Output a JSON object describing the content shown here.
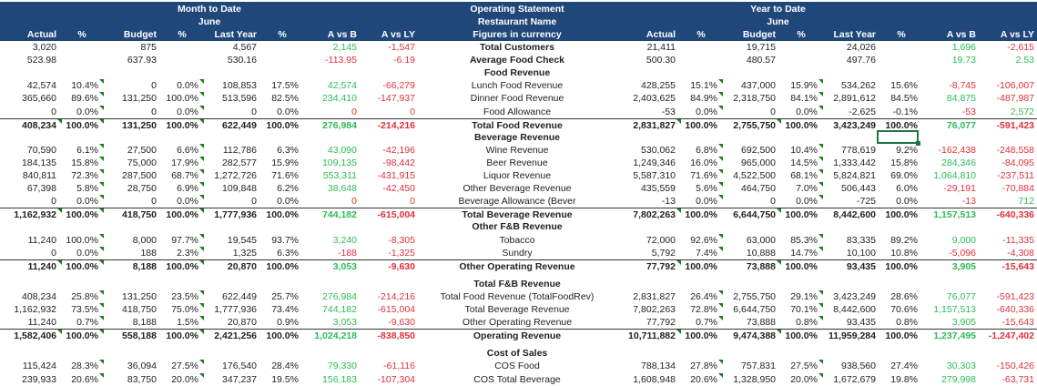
{
  "header": {
    "mtd_title": "Month to Date",
    "mtd_month": "June",
    "center_title": "Operating Statement",
    "center_subtitle": "Restaurant Name",
    "center_units": "Figures in  currency",
    "ytd_title": "Year to Date",
    "ytd_month": "June",
    "columns": [
      "Actual",
      "%",
      "Budget",
      "%",
      "Last Year",
      "%",
      "A vs B",
      "A vs LY"
    ]
  },
  "colors": {
    "header_bg": "#1f477a",
    "positive": "#2dbb55",
    "negative": "#e0303a",
    "selection": "#217346"
  },
  "rows": [
    {
      "type": "sec",
      "label": "Total Customers",
      "mtd": [
        "3,020",
        "",
        "875",
        "",
        "4,567",
        "",
        "2,145",
        "-1,547"
      ],
      "ytd": [
        "21,411",
        "",
        "19,715",
        "",
        "24,026",
        "",
        "1,696",
        "-2,615"
      ]
    },
    {
      "type": "sec",
      "label": "Average Food Check",
      "mtd": [
        "523.98",
        "",
        "637.93",
        "",
        "530.16",
        "",
        "-113.95",
        "-6.19"
      ],
      "ytd": [
        "500.30",
        "",
        "480.57",
        "",
        "497.76",
        "",
        "19.73",
        "2.53"
      ]
    },
    {
      "type": "sec",
      "label": "Food Revenue"
    },
    {
      "type": "line",
      "label": "Lunch Food Revenue",
      "mtd": [
        "42,574",
        "10.4%",
        "0",
        "0.0%",
        "108,853",
        "17.5%",
        "42,574",
        "-66,279"
      ],
      "ytd": [
        "428,255",
        "15.1%",
        "437,000",
        "15.9%",
        "534,262",
        "15.6%",
        "-8,745",
        "-106,007"
      ]
    },
    {
      "type": "line",
      "label": "Dinner Food Revenue",
      "mtd": [
        "365,660",
        "89.6%",
        "131,250",
        "100.0%",
        "513,596",
        "82.5%",
        "234,410",
        "-147,937"
      ],
      "ytd": [
        "2,403,625",
        "84.9%",
        "2,318,750",
        "84.1%",
        "2,891,612",
        "84.5%",
        "84,875",
        "-487,987"
      ]
    },
    {
      "type": "line",
      "label": "Food Allowance",
      "mtd": [
        "0",
        "0.0%",
        "0",
        "0.0%",
        "0",
        "0.0%",
        "0",
        "0"
      ],
      "ytd": [
        "-53",
        "0.0%",
        "0",
        "0.0%",
        "-2,625",
        "-0.1%",
        "-53",
        "2,572"
      ]
    },
    {
      "type": "total",
      "label": "Total Food Revenue",
      "mtd": [
        "408,234",
        "100.0%",
        "131,250",
        "100.0%",
        "622,449",
        "100.0%",
        "276,984",
        "-214,216"
      ],
      "ytd": [
        "2,831,827",
        "100.0%",
        "2,755,750",
        "100.0%",
        "3,423,249",
        "100.0%",
        "76,077",
        "-591,423"
      ]
    },
    {
      "type": "sec",
      "label": "Beverage Revenue"
    },
    {
      "type": "line",
      "label": "Wine Revenue",
      "mtd": [
        "70,590",
        "6.1%",
        "27,500",
        "6.6%",
        "112,786",
        "6.3%",
        "43,090",
        "-42,196"
      ],
      "ytd": [
        "530,062",
        "6.8%",
        "692,500",
        "10.4%",
        "778,619",
        "9.2%",
        "-162,438",
        "-248,558"
      ]
    },
    {
      "type": "line",
      "label": "Beer Revenue",
      "mtd": [
        "184,135",
        "15.8%",
        "75,000",
        "17.9%",
        "282,577",
        "15.9%",
        "109,135",
        "-98,442"
      ],
      "ytd": [
        "1,249,346",
        "16.0%",
        "965,000",
        "14.5%",
        "1,333,442",
        "15.8%",
        "284,346",
        "-84,095"
      ]
    },
    {
      "type": "line",
      "label": "Liquor Revenue",
      "mtd": [
        "840,811",
        "72.3%",
        "287,500",
        "68.7%",
        "1,272,726",
        "71.6%",
        "553,311",
        "-431,915"
      ],
      "ytd": [
        "5,587,310",
        "71.6%",
        "4,522,500",
        "68.1%",
        "5,824,821",
        "69.0%",
        "1,064,810",
        "-237,511"
      ]
    },
    {
      "type": "line",
      "label": "Other Beverage Revenue",
      "mtd": [
        "67,398",
        "5.8%",
        "28,750",
        "6.9%",
        "109,848",
        "6.2%",
        "38,648",
        "-42,450"
      ],
      "ytd": [
        "435,559",
        "5.6%",
        "464,750",
        "7.0%",
        "506,443",
        "6.0%",
        "-29,191",
        "-70,884"
      ]
    },
    {
      "type": "line",
      "label": "Beverage Allowance (Bever",
      "mtd": [
        "0",
        "0.0%",
        "0",
        "0.0%",
        "0",
        "0.0%",
        "0",
        "0"
      ],
      "ytd": [
        "-13",
        "0.0%",
        "0",
        "0.0%",
        "-725",
        "0.0%",
        "-13",
        "712"
      ]
    },
    {
      "type": "total",
      "label": "Total Beverage Revenue",
      "mtd": [
        "1,162,932",
        "100.0%",
        "418,750",
        "100.0%",
        "1,777,936",
        "100.0%",
        "744,182",
        "-615,004"
      ],
      "ytd": [
        "7,802,263",
        "100.0%",
        "6,644,750",
        "100.0%",
        "8,442,600",
        "100.0%",
        "1,157,513",
        "-640,336"
      ]
    },
    {
      "type": "sec",
      "label": "Other F&B Revenue"
    },
    {
      "type": "line",
      "label": "Tobacco",
      "mtd": [
        "11,240",
        "100.0%",
        "8,000",
        "97.7%",
        "19,545",
        "93.7%",
        "3,240",
        "-8,305"
      ],
      "ytd": [
        "72,000",
        "92.6%",
        "63,000",
        "85.3%",
        "83,335",
        "89.2%",
        "9,000",
        "-11,335"
      ]
    },
    {
      "type": "line",
      "label": "Sundry",
      "mtd": [
        "0",
        "0.0%",
        "188",
        "2.3%",
        "1,325",
        "6.3%",
        "-188",
        "-1,325"
      ],
      "ytd": [
        "5,792",
        "7.4%",
        "10,888",
        "14.7%",
        "10,100",
        "10.8%",
        "-5,096",
        "-4,308"
      ]
    },
    {
      "type": "total",
      "label": "Other Operating Revenue",
      "mtd": [
        "11,240",
        "100.0%",
        "8,188",
        "100.0%",
        "20,870",
        "100.0%",
        "3,053",
        "-9,630"
      ],
      "ytd": [
        "77,792",
        "100.0%",
        "73,888",
        "100.0%",
        "93,435",
        "100.0%",
        "3,905",
        "-15,643"
      ]
    },
    {
      "type": "blank"
    },
    {
      "type": "sec",
      "label": "Total F&B Revenue"
    },
    {
      "type": "line",
      "label": "Total Food Revenue (TotalFoodRev)",
      "mtd": [
        "408,234",
        "25.8%",
        "131,250",
        "23.5%",
        "622,449",
        "25.7%",
        "276,984",
        "-214,216"
      ],
      "ytd": [
        "2,831,827",
        "26.4%",
        "2,755,750",
        "29.1%",
        "3,423,249",
        "28.6%",
        "76,077",
        "-591,423"
      ]
    },
    {
      "type": "line",
      "label": "Total Beverage Revenue",
      "mtd": [
        "1,162,932",
        "73.5%",
        "418,750",
        "75.0%",
        "1,777,936",
        "73.4%",
        "744,182",
        "-615,004"
      ],
      "ytd": [
        "7,802,263",
        "72.8%",
        "6,644,750",
        "70.1%",
        "8,442,600",
        "70.6%",
        "1,157,513",
        "-640,336"
      ]
    },
    {
      "type": "line",
      "label": "Other Operating Revenue",
      "mtd": [
        "11,240",
        "0.7%",
        "8,188",
        "1.5%",
        "20,870",
        "0.9%",
        "3,053",
        "-9,630"
      ],
      "ytd": [
        "77,792",
        "0.7%",
        "73,888",
        "0.8%",
        "93,435",
        "0.8%",
        "3,905",
        "-15,643"
      ]
    },
    {
      "type": "total",
      "label": "Operating Revenue",
      "mtd": [
        "1,582,406",
        "100.0%",
        "558,188",
        "100.0%",
        "2,421,256",
        "100.0%",
        "1,024,218",
        "-838,850"
      ],
      "ytd": [
        "10,711,882",
        "100.0%",
        "9,474,388",
        "100.0%",
        "11,959,284",
        "100.0%",
        "1,237,495",
        "-1,247,402"
      ]
    },
    {
      "type": "blank"
    },
    {
      "type": "sec",
      "label": "Cost of Sales"
    },
    {
      "type": "line",
      "label": "COS Food",
      "mtd": [
        "115,424",
        "28.3%",
        "36,094",
        "27.5%",
        "176,540",
        "28.4%",
        "79,330",
        "-61,116"
      ],
      "ytd": [
        "788,134",
        "27.8%",
        "757,831",
        "27.5%",
        "938,560",
        "27.4%",
        "30,303",
        "-150,426"
      ]
    },
    {
      "type": "line",
      "label": "COS Total Beverage",
      "mtd": [
        "239,933",
        "20.6%",
        "83,750",
        "20.0%",
        "347,237",
        "19.5%",
        "156,183",
        "-107,304"
      ],
      "ytd": [
        "1,608,948",
        "20.6%",
        "1,328,950",
        "20.0%",
        "1,672,679",
        "19.8%",
        "279,998",
        "-63,731"
      ]
    }
  ]
}
